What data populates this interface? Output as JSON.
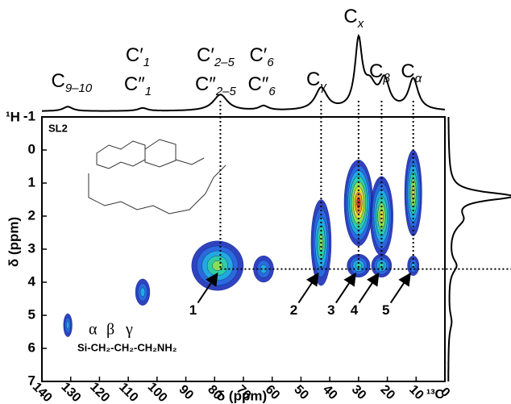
{
  "chart_data": {
    "type": "contour",
    "sample_label": "SL2",
    "xlabel": "δ (ppm)",
    "ylabel": "δ (ppm)",
    "x_nucleus": "¹³C",
    "y_nucleus": "¹H",
    "xlim": [
      140,
      0
    ],
    "xticks": [
      140,
      130,
      120,
      110,
      100,
      90,
      80,
      70,
      60,
      50,
      40,
      30,
      20,
      10,
      0
    ],
    "ylim": [
      -1,
      7
    ],
    "yticks": [
      -1,
      0,
      1,
      2,
      3,
      4,
      5,
      6,
      7
    ],
    "structure_greek": [
      "α",
      "β",
      "γ"
    ],
    "structure_formula": "Si-CH₂-CH₂-CH₂NH₂",
    "top_annotations": [
      {
        "x": 128,
        "lines": [
          {
            "base": "C",
            "sub": "9–10"
          }
        ]
      },
      {
        "x": 105,
        "lines": [
          {
            "base": "C′",
            "sub": "1"
          },
          {
            "base": "C″",
            "sub": "1"
          }
        ]
      },
      {
        "x": 78,
        "lines": [
          {
            "base": "C′",
            "sub": "2–5"
          },
          {
            "base": "C″",
            "sub": "2–5"
          }
        ]
      },
      {
        "x": 62,
        "lines": [
          {
            "base": "C′",
            "sub": "6"
          },
          {
            "base": "C″",
            "sub": "6"
          }
        ]
      },
      {
        "x": 43,
        "lines": [
          {
            "base": "C",
            "sub": "γ"
          }
        ]
      },
      {
        "x": 30,
        "lines": [
          {
            "base": "C",
            "sub": "x"
          }
        ]
      },
      {
        "x": 21,
        "lines": [
          {
            "base": "C",
            "sub": "β"
          }
        ]
      },
      {
        "x": 10,
        "lines": [
          {
            "base": "C",
            "sub": "α"
          }
        ]
      }
    ],
    "peaks": [
      {
        "x": 131,
        "y": 5.3,
        "rx": 1.5,
        "ry": 0.35,
        "levels": 3
      },
      {
        "x": 105,
        "y": 4.3,
        "rx": 2.5,
        "ry": 0.4,
        "levels": 3
      },
      {
        "x": 79,
        "y": 3.5,
        "rx": 9,
        "ry": 0.75,
        "levels": 5
      },
      {
        "x": 63,
        "y": 3.6,
        "rx": 3.5,
        "ry": 0.4,
        "levels": 3
      },
      {
        "x": 43,
        "y": 2.8,
        "rx": 3.5,
        "ry": 1.3,
        "levels": 5
      },
      {
        "x": 30,
        "y": 1.6,
        "rx": 5,
        "ry": 1.3,
        "levels": 8
      },
      {
        "x": 30,
        "y": 3.5,
        "rx": 4,
        "ry": 0.35,
        "levels": 4
      },
      {
        "x": 22,
        "y": 2.0,
        "rx": 4,
        "ry": 1.2,
        "levels": 6
      },
      {
        "x": 22,
        "y": 3.5,
        "rx": 3.5,
        "ry": 0.35,
        "levels": 4
      },
      {
        "x": 11,
        "y": 1.3,
        "rx": 3,
        "ry": 1.3,
        "levels": 6
      },
      {
        "x": 11,
        "y": 3.5,
        "rx": 2,
        "ry": 0.3,
        "levels": 3
      }
    ],
    "assignments": [
      {
        "label": "1",
        "x": 78,
        "y": 3.6
      },
      {
        "label": "2",
        "x": 43,
        "y": 3.6
      },
      {
        "label": "3",
        "x": 30,
        "y": 3.6
      },
      {
        "label": "4",
        "x": 22,
        "y": 3.6
      },
      {
        "label": "5",
        "x": 11,
        "y": 3.6
      }
    ],
    "top_trace": [
      {
        "x": 131,
        "height": 0.06,
        "width": 2
      },
      {
        "x": 105,
        "height": 0.04,
        "width": 2
      },
      {
        "x": 78,
        "height": 0.22,
        "width": 3
      },
      {
        "x": 63,
        "height": 0.06,
        "width": 2
      },
      {
        "x": 43,
        "height": 0.3,
        "width": 2.5
      },
      {
        "x": 30,
        "height": 0.9,
        "width": 1.5
      },
      {
        "x": 26,
        "height": 0.3,
        "width": 2.5
      },
      {
        "x": 21,
        "height": 0.38,
        "width": 2
      },
      {
        "x": 11,
        "height": 0.42,
        "width": 2
      }
    ],
    "right_trace": [
      {
        "y": 1.4,
        "height": 1.0,
        "width": 0.15
      },
      {
        "y": 2.1,
        "height": 0.2,
        "width": 0.3
      },
      {
        "y": 3.5,
        "height": 0.12,
        "width": 0.25
      },
      {
        "y": 5.2,
        "height": 0.05,
        "width": 0.3
      }
    ]
  }
}
